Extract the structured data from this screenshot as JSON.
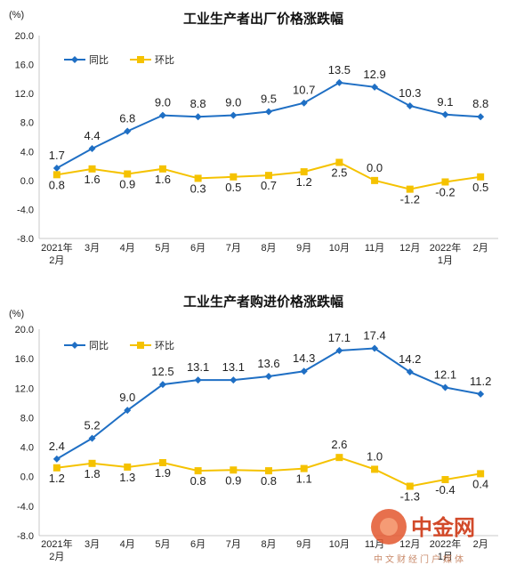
{
  "chart_data": [
    {
      "type": "line",
      "title": "工业生产者出厂价格涨跌幅",
      "unit": "(%)",
      "ylim": [
        -8.0,
        20.0
      ],
      "yticks": [
        "20.0",
        "16.0",
        "12.0",
        "8.0",
        "4.0",
        "0.0",
        "-4.0",
        "-8.0"
      ],
      "categories": [
        [
          "2021年",
          "2月"
        ],
        [
          "3月"
        ],
        [
          "4月"
        ],
        [
          "5月"
        ],
        [
          "6月"
        ],
        [
          "7月"
        ],
        [
          "8月"
        ],
        [
          "9月"
        ],
        [
          "10月"
        ],
        [
          "11月"
        ],
        [
          "12月"
        ],
        [
          "2022年",
          "1月"
        ],
        [
          "2月"
        ]
      ],
      "legend_position": "top-left",
      "grid": false,
      "series": [
        {
          "name": "同比",
          "color": "#1f6fc4",
          "marker": "diamond",
          "values": [
            1.7,
            4.4,
            6.8,
            9.0,
            8.8,
            9.0,
            9.5,
            10.7,
            13.5,
            12.9,
            10.3,
            9.1,
            8.8
          ],
          "labels": [
            "1.7",
            "4.4",
            "6.8",
            "9.0",
            "8.8",
            "9.0",
            "9.5",
            "10.7",
            "13.5",
            "12.9",
            "10.3",
            "9.1",
            "8.8"
          ]
        },
        {
          "name": "环比",
          "color": "#f5c200",
          "marker": "square",
          "values": [
            0.8,
            1.6,
            0.9,
            1.6,
            0.3,
            0.5,
            0.7,
            1.2,
            2.5,
            0.0,
            -1.2,
            -0.2,
            0.5
          ],
          "labels": [
            "0.8",
            "1.6",
            "0.9",
            "1.6",
            "0.3",
            "0.5",
            "0.7",
            "1.2",
            "2.5",
            "0.0",
            "-1.2",
            "-0.2",
            "0.5"
          ]
        }
      ]
    },
    {
      "type": "line",
      "title": "工业生产者购进价格涨跌幅",
      "unit": "(%)",
      "ylim": [
        -8.0,
        20.0
      ],
      "yticks": [
        "20.0",
        "16.0",
        "12.0",
        "8.0",
        "4.0",
        "0.0",
        "-4.0",
        "-8.0"
      ],
      "categories": [
        [
          "2021年",
          "2月"
        ],
        [
          "3月"
        ],
        [
          "4月"
        ],
        [
          "5月"
        ],
        [
          "6月"
        ],
        [
          "7月"
        ],
        [
          "8月"
        ],
        [
          "9月"
        ],
        [
          "10月"
        ],
        [
          "11月"
        ],
        [
          "12月"
        ],
        [
          "2022年",
          "1月"
        ],
        [
          "2月"
        ]
      ],
      "legend_position": "top-left",
      "grid": false,
      "series": [
        {
          "name": "同比",
          "color": "#1f6fc4",
          "marker": "diamond",
          "values": [
            2.4,
            5.2,
            9.0,
            12.5,
            13.1,
            13.1,
            13.6,
            14.3,
            17.1,
            17.4,
            14.2,
            12.1,
            11.2
          ],
          "labels": [
            "2.4",
            "5.2",
            "9.0",
            "12.5",
            "13.1",
            "13.1",
            "13.6",
            "14.3",
            "17.1",
            "17.4",
            "14.2",
            "12.1",
            "11.2"
          ]
        },
        {
          "name": "环比",
          "color": "#f5c200",
          "marker": "square",
          "values": [
            1.2,
            1.8,
            1.3,
            1.9,
            0.8,
            0.9,
            0.8,
            1.1,
            2.6,
            1.0,
            -1.3,
            -0.4,
            0.4
          ],
          "labels": [
            "1.2",
            "1.8",
            "1.3",
            "1.9",
            "0.8",
            "0.9",
            "0.8",
            "1.1",
            "2.6",
            "1.0",
            "-1.3",
            "-0.4",
            "0.4"
          ]
        }
      ]
    }
  ],
  "watermark": {
    "brand": "中金网",
    "tagline": "中文财经门户媒体"
  }
}
